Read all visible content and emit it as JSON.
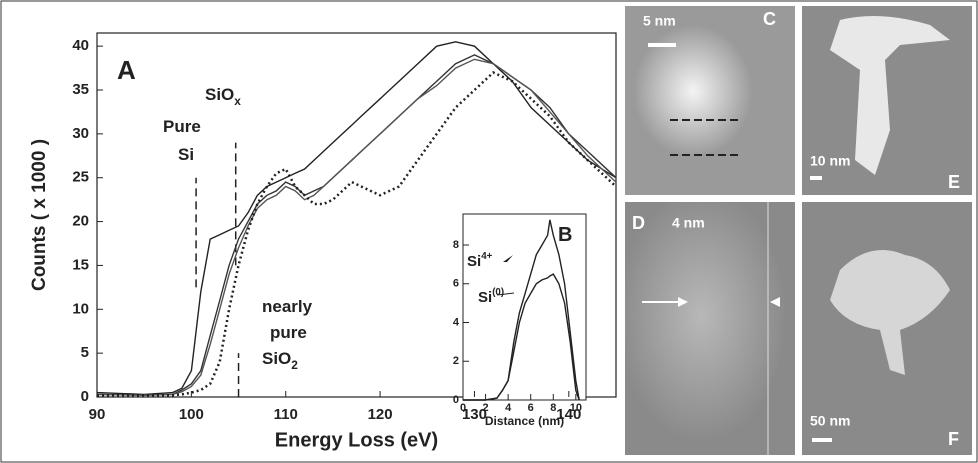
{
  "chart_data": [
    {
      "type": "line",
      "xlabel": "Energy Loss (eV)",
      "ylabel": "Counts ( x 1000 )",
      "xlim": [
        90,
        145
      ],
      "ylim": [
        0,
        41.5
      ],
      "xticks": [
        90,
        100,
        110,
        120,
        130,
        140
      ],
      "yticks": [
        0,
        5,
        10,
        15,
        20,
        25,
        30,
        35,
        40
      ],
      "annotations": [
        {
          "text": "A"
        },
        {
          "text": "Pure"
        },
        {
          "text": "Si"
        },
        {
          "text": "SiO",
          "sub": "x"
        },
        {
          "text": "nearly"
        },
        {
          "text": "pure"
        },
        {
          "text": "SiO",
          "sub": "2"
        }
      ],
      "vlines": [
        {
          "x": 100.5,
          "y0": 12.5,
          "y1": 25
        },
        {
          "x": 104.7,
          "y0": 15,
          "y1": 29
        },
        {
          "x": 105,
          "y0": 0,
          "y1": 5
        }
      ],
      "x": [
        90,
        95,
        98,
        99,
        100,
        101,
        102,
        103,
        104,
        105,
        106,
        107,
        108,
        109,
        110,
        111,
        112,
        113,
        114,
        115,
        116,
        117,
        118,
        120,
        122,
        124,
        126,
        128,
        130,
        132,
        134,
        136,
        138,
        140,
        142,
        145
      ],
      "series": [
        {
          "color": "#222222",
          "dash": "solid",
          "values": [
            0.5,
            0.3,
            0.5,
            1,
            3,
            12,
            18,
            18.5,
            19,
            19.5,
            21,
            23,
            24,
            24.5,
            25,
            25.5,
            26,
            27,
            28,
            29,
            30,
            31,
            32,
            34,
            36,
            38,
            40,
            40.5,
            40,
            38,
            36,
            33,
            31,
            29,
            27,
            25
          ]
        },
        {
          "color": "#333333",
          "dash": "solid",
          "values": [
            0.3,
            0.2,
            0.3,
            0.8,
            1.5,
            3,
            7,
            11,
            15,
            18,
            20,
            22,
            23,
            23.5,
            24.5,
            24,
            23,
            23.5,
            24,
            25,
            26,
            27,
            28,
            30,
            32,
            34,
            36,
            38,
            39,
            38,
            36.5,
            35,
            33,
            30,
            28,
            25
          ]
        },
        {
          "color": "#555555",
          "dash": "solid",
          "values": [
            0.3,
            0.2,
            0.3,
            0.6,
            1.2,
            2.5,
            6,
            10,
            14,
            17,
            19.5,
            21.5,
            22.5,
            23,
            24,
            23.5,
            22.5,
            23,
            24,
            25,
            26,
            27,
            28,
            30,
            32,
            34,
            35.5,
            37.5,
            38.5,
            38,
            36.5,
            35,
            32.5,
            30,
            27.5,
            24.5
          ]
        },
        {
          "color": "#222222",
          "dash": "dotted",
          "values": [
            0.2,
            0.2,
            0.2,
            0.3,
            0.5,
            0.8,
            1.5,
            4,
            10,
            15,
            19,
            22,
            24,
            25.5,
            26,
            24,
            23,
            22,
            22,
            22.5,
            23.5,
            24.5,
            24,
            23,
            24,
            27,
            30,
            33,
            35,
            37,
            36,
            34,
            32,
            29,
            27,
            24
          ]
        }
      ]
    },
    {
      "type": "line",
      "xlabel": "Distance (nm)",
      "xlim": [
        0,
        10.9
      ],
      "ylim": [
        0,
        9.6
      ],
      "xticks": [
        0,
        2,
        4,
        6,
        8,
        10
      ],
      "yticks": [
        0,
        2,
        4,
        6,
        8
      ],
      "annotations": [
        {
          "text": "B"
        },
        {
          "text": "Si",
          "sup": "4+"
        },
        {
          "text": "Si",
          "sup": "(0)"
        }
      ],
      "x": [
        0,
        1,
        2,
        3,
        3.5,
        4,
        4.5,
        5,
        5.5,
        6,
        6.5,
        7,
        7.5,
        7.7,
        8,
        8.5,
        9,
        9.5,
        10,
        10.3
      ],
      "series": [
        {
          "color": "#222222",
          "dash": "solid",
          "values": [
            0,
            0,
            0,
            0.1,
            0.5,
            1,
            3,
            4.5,
            5.5,
            6.5,
            7.5,
            8,
            8.5,
            9.3,
            8.5,
            7.5,
            6,
            3.5,
            1,
            0
          ]
        },
        {
          "color": "#222222",
          "dash": "solid",
          "values": [
            0,
            0,
            0,
            0.1,
            0.5,
            1,
            2.5,
            4,
            5,
            5.5,
            6,
            6.2,
            6.3,
            6.4,
            6.5,
            6,
            5,
            3,
            0.5,
            0
          ]
        }
      ]
    }
  ],
  "images": [
    {
      "label": "C",
      "scale": "5 nm"
    },
    {
      "label": "E",
      "scale": "10 nm"
    },
    {
      "label": "D",
      "scale": "4 nm"
    },
    {
      "label": "F",
      "scale": "50 nm"
    }
  ]
}
